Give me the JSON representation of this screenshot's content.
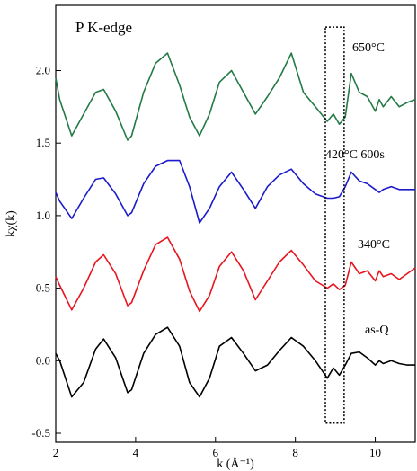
{
  "chart_data": {
    "type": "line",
    "title": "",
    "panel_label": "P K-edge",
    "xlabel": "k (Å⁻¹)",
    "ylabel": "kχ(k)",
    "xlim": [
      2,
      11
    ],
    "ylim": [
      -0.5,
      2.35
    ],
    "x_ticks": [
      2,
      4,
      6,
      8,
      10
    ],
    "x_tick_labels": [
      "2",
      "4",
      "6",
      "8",
      "10"
    ],
    "y_ticks": [
      -0.5,
      0.0,
      0.5,
      1.0,
      1.5,
      2.0
    ],
    "y_tick_labels": [
      "-0.5",
      "0.0",
      "0.5",
      "1.0",
      "1.5",
      "2.0"
    ],
    "grid": false,
    "legend": "none",
    "highlight_box": {
      "x": [
        8.75,
        9.22
      ],
      "y": [
        -0.43,
        2.3
      ],
      "style": "dotted"
    },
    "series": [
      {
        "name": "as-Q",
        "color": "#000000",
        "x": [
          2.0,
          2.1,
          2.4,
          2.7,
          3.0,
          3.2,
          3.5,
          3.8,
          3.9,
          4.2,
          4.5,
          4.8,
          5.1,
          5.35,
          5.6,
          5.85,
          6.1,
          6.4,
          6.7,
          7.0,
          7.3,
          7.6,
          7.9,
          8.2,
          8.5,
          8.8,
          8.95,
          9.1,
          9.25,
          9.4,
          9.6,
          9.8,
          10.0,
          10.1,
          10.2,
          10.4,
          10.6,
          10.8,
          11.0
        ],
        "y": [
          0.05,
          0.0,
          -0.25,
          -0.15,
          0.08,
          0.15,
          0.02,
          -0.22,
          -0.2,
          0.05,
          0.18,
          0.23,
          0.1,
          -0.15,
          -0.25,
          -0.12,
          0.1,
          0.16,
          0.05,
          -0.07,
          -0.03,
          0.07,
          0.16,
          0.1,
          0.0,
          -0.12,
          -0.05,
          -0.1,
          -0.03,
          0.05,
          0.06,
          0.02,
          -0.03,
          0.0,
          -0.02,
          0.0,
          -0.02,
          -0.03,
          -0.03
        ]
      },
      {
        "name": "340°C",
        "color": "#e8141e",
        "x": [
          2.0,
          2.1,
          2.4,
          2.7,
          3.0,
          3.2,
          3.5,
          3.8,
          3.9,
          4.2,
          4.5,
          4.8,
          5.1,
          5.35,
          5.6,
          5.85,
          6.1,
          6.4,
          6.7,
          7.0,
          7.3,
          7.6,
          7.9,
          8.2,
          8.5,
          8.8,
          8.95,
          9.1,
          9.25,
          9.4,
          9.6,
          9.8,
          10.0,
          10.1,
          10.2,
          10.4,
          10.6,
          10.8,
          11.0
        ],
        "y": [
          0.58,
          0.52,
          0.35,
          0.5,
          0.68,
          0.73,
          0.6,
          0.38,
          0.4,
          0.62,
          0.8,
          0.85,
          0.7,
          0.48,
          0.34,
          0.45,
          0.65,
          0.75,
          0.62,
          0.42,
          0.55,
          0.68,
          0.76,
          0.66,
          0.55,
          0.5,
          0.53,
          0.49,
          0.52,
          0.68,
          0.6,
          0.62,
          0.55,
          0.62,
          0.58,
          0.6,
          0.56,
          0.6,
          0.64
        ]
      },
      {
        "name": "420°C 600s",
        "color": "#1a1acc",
        "x": [
          2.0,
          2.1,
          2.4,
          2.7,
          3.0,
          3.2,
          3.5,
          3.8,
          3.9,
          4.2,
          4.5,
          4.8,
          5.1,
          5.35,
          5.6,
          5.85,
          6.1,
          6.4,
          6.7,
          7.0,
          7.3,
          7.6,
          7.9,
          8.2,
          8.5,
          8.8,
          8.95,
          9.1,
          9.25,
          9.4,
          9.6,
          9.8,
          10.0,
          10.1,
          10.2,
          10.4,
          10.6,
          10.8,
          11.0
        ],
        "y": [
          1.16,
          1.1,
          0.98,
          1.12,
          1.25,
          1.26,
          1.15,
          1.0,
          1.02,
          1.22,
          1.34,
          1.38,
          1.38,
          1.2,
          0.95,
          1.05,
          1.2,
          1.3,
          1.18,
          1.05,
          1.2,
          1.28,
          1.32,
          1.22,
          1.15,
          1.12,
          1.12,
          1.13,
          1.2,
          1.3,
          1.24,
          1.22,
          1.18,
          1.16,
          1.18,
          1.2,
          1.18,
          1.18,
          1.18
        ]
      },
      {
        "name": "650°C",
        "color": "#237a46",
        "x": [
          2.0,
          2.1,
          2.4,
          2.7,
          3.0,
          3.2,
          3.5,
          3.8,
          3.9,
          4.2,
          4.5,
          4.8,
          5.1,
          5.35,
          5.6,
          5.85,
          6.1,
          6.4,
          6.7,
          7.0,
          7.3,
          7.6,
          7.9,
          8.2,
          8.5,
          8.8,
          8.95,
          9.1,
          9.25,
          9.4,
          9.6,
          9.8,
          10.0,
          10.1,
          10.2,
          10.4,
          10.6,
          10.8,
          11.0
        ],
        "y": [
          1.95,
          1.8,
          1.55,
          1.7,
          1.85,
          1.87,
          1.72,
          1.52,
          1.55,
          1.85,
          2.05,
          2.12,
          1.9,
          1.68,
          1.55,
          1.7,
          1.92,
          2.0,
          1.85,
          1.7,
          1.82,
          1.95,
          2.12,
          1.85,
          1.75,
          1.65,
          1.7,
          1.63,
          1.68,
          1.98,
          1.85,
          1.82,
          1.72,
          1.8,
          1.75,
          1.82,
          1.75,
          1.78,
          1.8
        ]
      }
    ],
    "series_labels": [
      {
        "text": "as-Q",
        "series": 0
      },
      {
        "text": "340°C",
        "series": 1
      },
      {
        "text": "420°C 600s",
        "series": 2
      },
      {
        "text": "650°C",
        "series": 3
      }
    ]
  }
}
